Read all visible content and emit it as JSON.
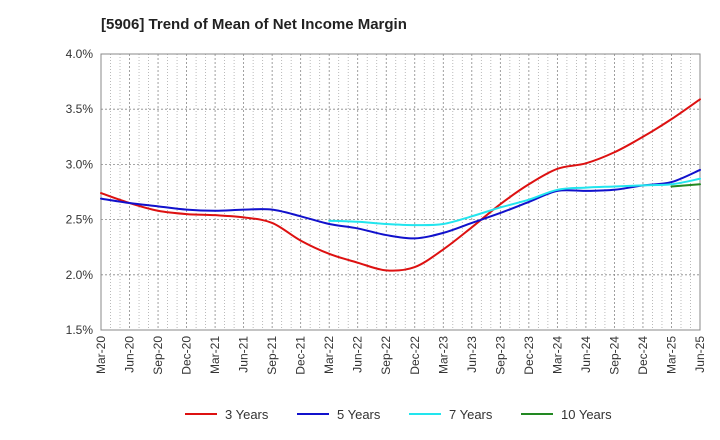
{
  "chart_data": {
    "type": "line",
    "title": "[5906]  Trend of Mean of Net Income Margin",
    "xlabel": "",
    "ylabel": "",
    "x_ticks": [
      "Mar-20",
      "Jun-20",
      "Sep-20",
      "Dec-20",
      "Mar-21",
      "Jun-21",
      "Sep-21",
      "Dec-21",
      "Mar-22",
      "Jun-22",
      "Sep-22",
      "Dec-22",
      "Mar-23",
      "Jun-23",
      "Sep-23",
      "Dec-23",
      "Mar-24",
      "Jun-24",
      "Sep-24",
      "Dec-24",
      "Mar-25",
      "Jun-25"
    ],
    "y_ticks": [
      "1.5%",
      "2.0%",
      "2.5%",
      "3.0%",
      "3.5%",
      "4.0%"
    ],
    "ylim": [
      1.5,
      4.0
    ],
    "grid": "dotted vertical and horizontal",
    "legend_position": "bottom",
    "series": [
      {
        "name": "3 Years",
        "color": "#dd1111",
        "values": [
          2.74,
          2.65,
          2.58,
          2.55,
          2.54,
          2.52,
          2.47,
          2.31,
          2.19,
          2.11,
          2.04,
          2.07,
          2.23,
          2.43,
          2.64,
          2.82,
          2.96,
          3.01,
          3.11,
          3.25,
          3.41,
          3.59
        ]
      },
      {
        "name": "5 Years",
        "color": "#1111cc",
        "values": [
          2.69,
          2.65,
          2.62,
          2.59,
          2.58,
          2.59,
          2.59,
          2.53,
          2.46,
          2.42,
          2.36,
          2.33,
          2.38,
          2.47,
          2.56,
          2.66,
          2.76,
          2.76,
          2.77,
          2.81,
          2.84,
          2.95
        ]
      },
      {
        "name": "7 Years",
        "color": "#22e5ee",
        "values": [
          null,
          null,
          null,
          null,
          null,
          null,
          null,
          null,
          2.49,
          2.48,
          2.46,
          2.45,
          2.46,
          2.53,
          2.61,
          2.68,
          2.77,
          2.79,
          2.8,
          2.81,
          2.82,
          2.87
        ]
      },
      {
        "name": "10 Years",
        "color": "#228822",
        "values": [
          null,
          null,
          null,
          null,
          null,
          null,
          null,
          null,
          null,
          null,
          null,
          null,
          null,
          null,
          null,
          null,
          null,
          null,
          null,
          null,
          2.8,
          2.82
        ]
      }
    ]
  }
}
